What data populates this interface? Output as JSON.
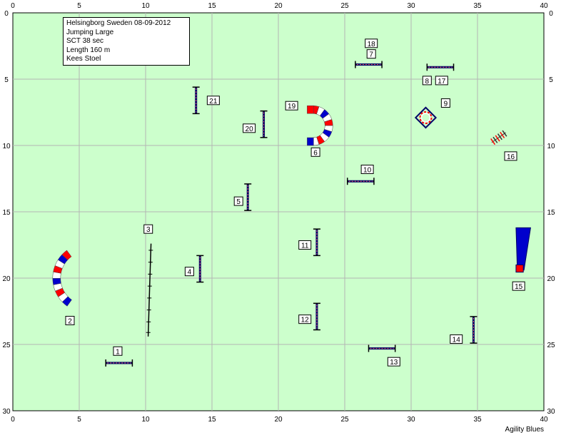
{
  "course": {
    "title_lines": [
      "Helsingborg Sweden 08-09-2012",
      "Jumping Large",
      "SCT 38 sec",
      "Length 160 m",
      "Kees Stoel"
    ],
    "credit": "Agility Blues",
    "colors": {
      "field": "#ccffcc",
      "grid": "#b4b4b4",
      "blue": "#0000cc",
      "red": "#ff0000",
      "navy": "#000066"
    }
  },
  "chart_data": {
    "type": "diagram",
    "xlim": [
      0,
      40
    ],
    "ylim": [
      0,
      30
    ],
    "x_ticks": [
      0,
      5,
      10,
      15,
      20,
      25,
      30,
      35,
      40
    ],
    "y_ticks": [
      0,
      5,
      10,
      15,
      20,
      25,
      30
    ],
    "tick_labels_x": [
      "0",
      "5",
      "10",
      "15",
      "20",
      "25",
      "30",
      "35",
      "40"
    ],
    "tick_labels_y": [
      "0",
      "5",
      "10",
      "15",
      "20",
      "25",
      "30"
    ],
    "obstacles": [
      {
        "id": "1",
        "type": "jump",
        "x": 8.0,
        "y": 26.4,
        "angle": 0
      },
      {
        "id": "2",
        "type": "tunnel",
        "x": 5.6,
        "y": 20.0,
        "r": 2.6
      },
      {
        "id": "3",
        "type": "wall",
        "x": 10.3,
        "y": 21.0
      },
      {
        "id": "4",
        "type": "jump",
        "x": 14.1,
        "y": 19.3,
        "angle": 90
      },
      {
        "id": "5",
        "type": "jump",
        "x": 17.7,
        "y": 13.9,
        "angle": 90
      },
      {
        "id": "6",
        "type": "tunnel",
        "x": 22.6,
        "y": 8.5,
        "r": 1.5
      },
      {
        "id": "7",
        "type": "jump",
        "x": 26.8,
        "y": 3.9,
        "angle": 0
      },
      {
        "id": "8",
        "type": "jump",
        "x": 32.2,
        "y": 4.1,
        "angle": 0
      },
      {
        "id": "9",
        "type": "tire",
        "x": 31.1,
        "y": 7.9
      },
      {
        "id": "10",
        "type": "jump",
        "x": 26.2,
        "y": 12.7,
        "angle": 0
      },
      {
        "id": "11",
        "type": "jump",
        "x": 22.9,
        "y": 17.3,
        "angle": 90
      },
      {
        "id": "12",
        "type": "jump",
        "x": 22.9,
        "y": 22.9,
        "angle": 90
      },
      {
        "id": "13",
        "type": "jump",
        "x": 27.8,
        "y": 25.3,
        "angle": 0
      },
      {
        "id": "14",
        "type": "jump",
        "x": 34.7,
        "y": 23.9,
        "angle": 90
      },
      {
        "id": "15",
        "type": "table",
        "x": 38.2,
        "y": 17.8
      },
      {
        "id": "16",
        "type": "weave",
        "x": 36.6,
        "y": 9.4
      },
      {
        "id": "17",
        "type": "jump",
        "x": 32.2,
        "y": 4.1,
        "angle": 0
      },
      {
        "id": "18",
        "type": "jump",
        "x": 26.8,
        "y": 3.9,
        "angle": 0
      },
      {
        "id": "19",
        "type": "tunnel",
        "x": 22.6,
        "y": 8.5,
        "r": 1.5
      },
      {
        "id": "20",
        "type": "jump",
        "x": 18.9,
        "y": 8.4,
        "angle": 90
      },
      {
        "id": "21",
        "type": "jump",
        "x": 13.8,
        "y": 6.6,
        "angle": 90
      }
    ],
    "number_labels": [
      {
        "text": "1",
        "x": 7.9,
        "y": 25.5
      },
      {
        "text": "2",
        "x": 4.3,
        "y": 23.2
      },
      {
        "text": "3",
        "x": 10.2,
        "y": 16.3
      },
      {
        "text": "4",
        "x": 13.3,
        "y": 19.5
      },
      {
        "text": "5",
        "x": 17.0,
        "y": 14.2
      },
      {
        "text": "6",
        "x": 22.8,
        "y": 10.5
      },
      {
        "text": "7",
        "x": 27.0,
        "y": 3.1
      },
      {
        "text": "8",
        "x": 31.2,
        "y": 5.1
      },
      {
        "text": "9",
        "x": 32.6,
        "y": 6.8
      },
      {
        "text": "10",
        "x": 26.7,
        "y": 11.8
      },
      {
        "text": "11",
        "x": 22.0,
        "y": 17.5
      },
      {
        "text": "12",
        "x": 22.0,
        "y": 23.1
      },
      {
        "text": "13",
        "x": 28.7,
        "y": 26.3
      },
      {
        "text": "14",
        "x": 33.4,
        "y": 24.6
      },
      {
        "text": "15",
        "x": 38.1,
        "y": 20.6
      },
      {
        "text": "16",
        "x": 37.5,
        "y": 10.8
      },
      {
        "text": "17",
        "x": 32.3,
        "y": 5.1
      },
      {
        "text": "18",
        "x": 27.0,
        "y": 2.3
      },
      {
        "text": "19",
        "x": 21.0,
        "y": 7.0
      },
      {
        "text": "20",
        "x": 17.8,
        "y": 8.7
      },
      {
        "text": "21",
        "x": 15.1,
        "y": 6.6
      }
    ]
  }
}
